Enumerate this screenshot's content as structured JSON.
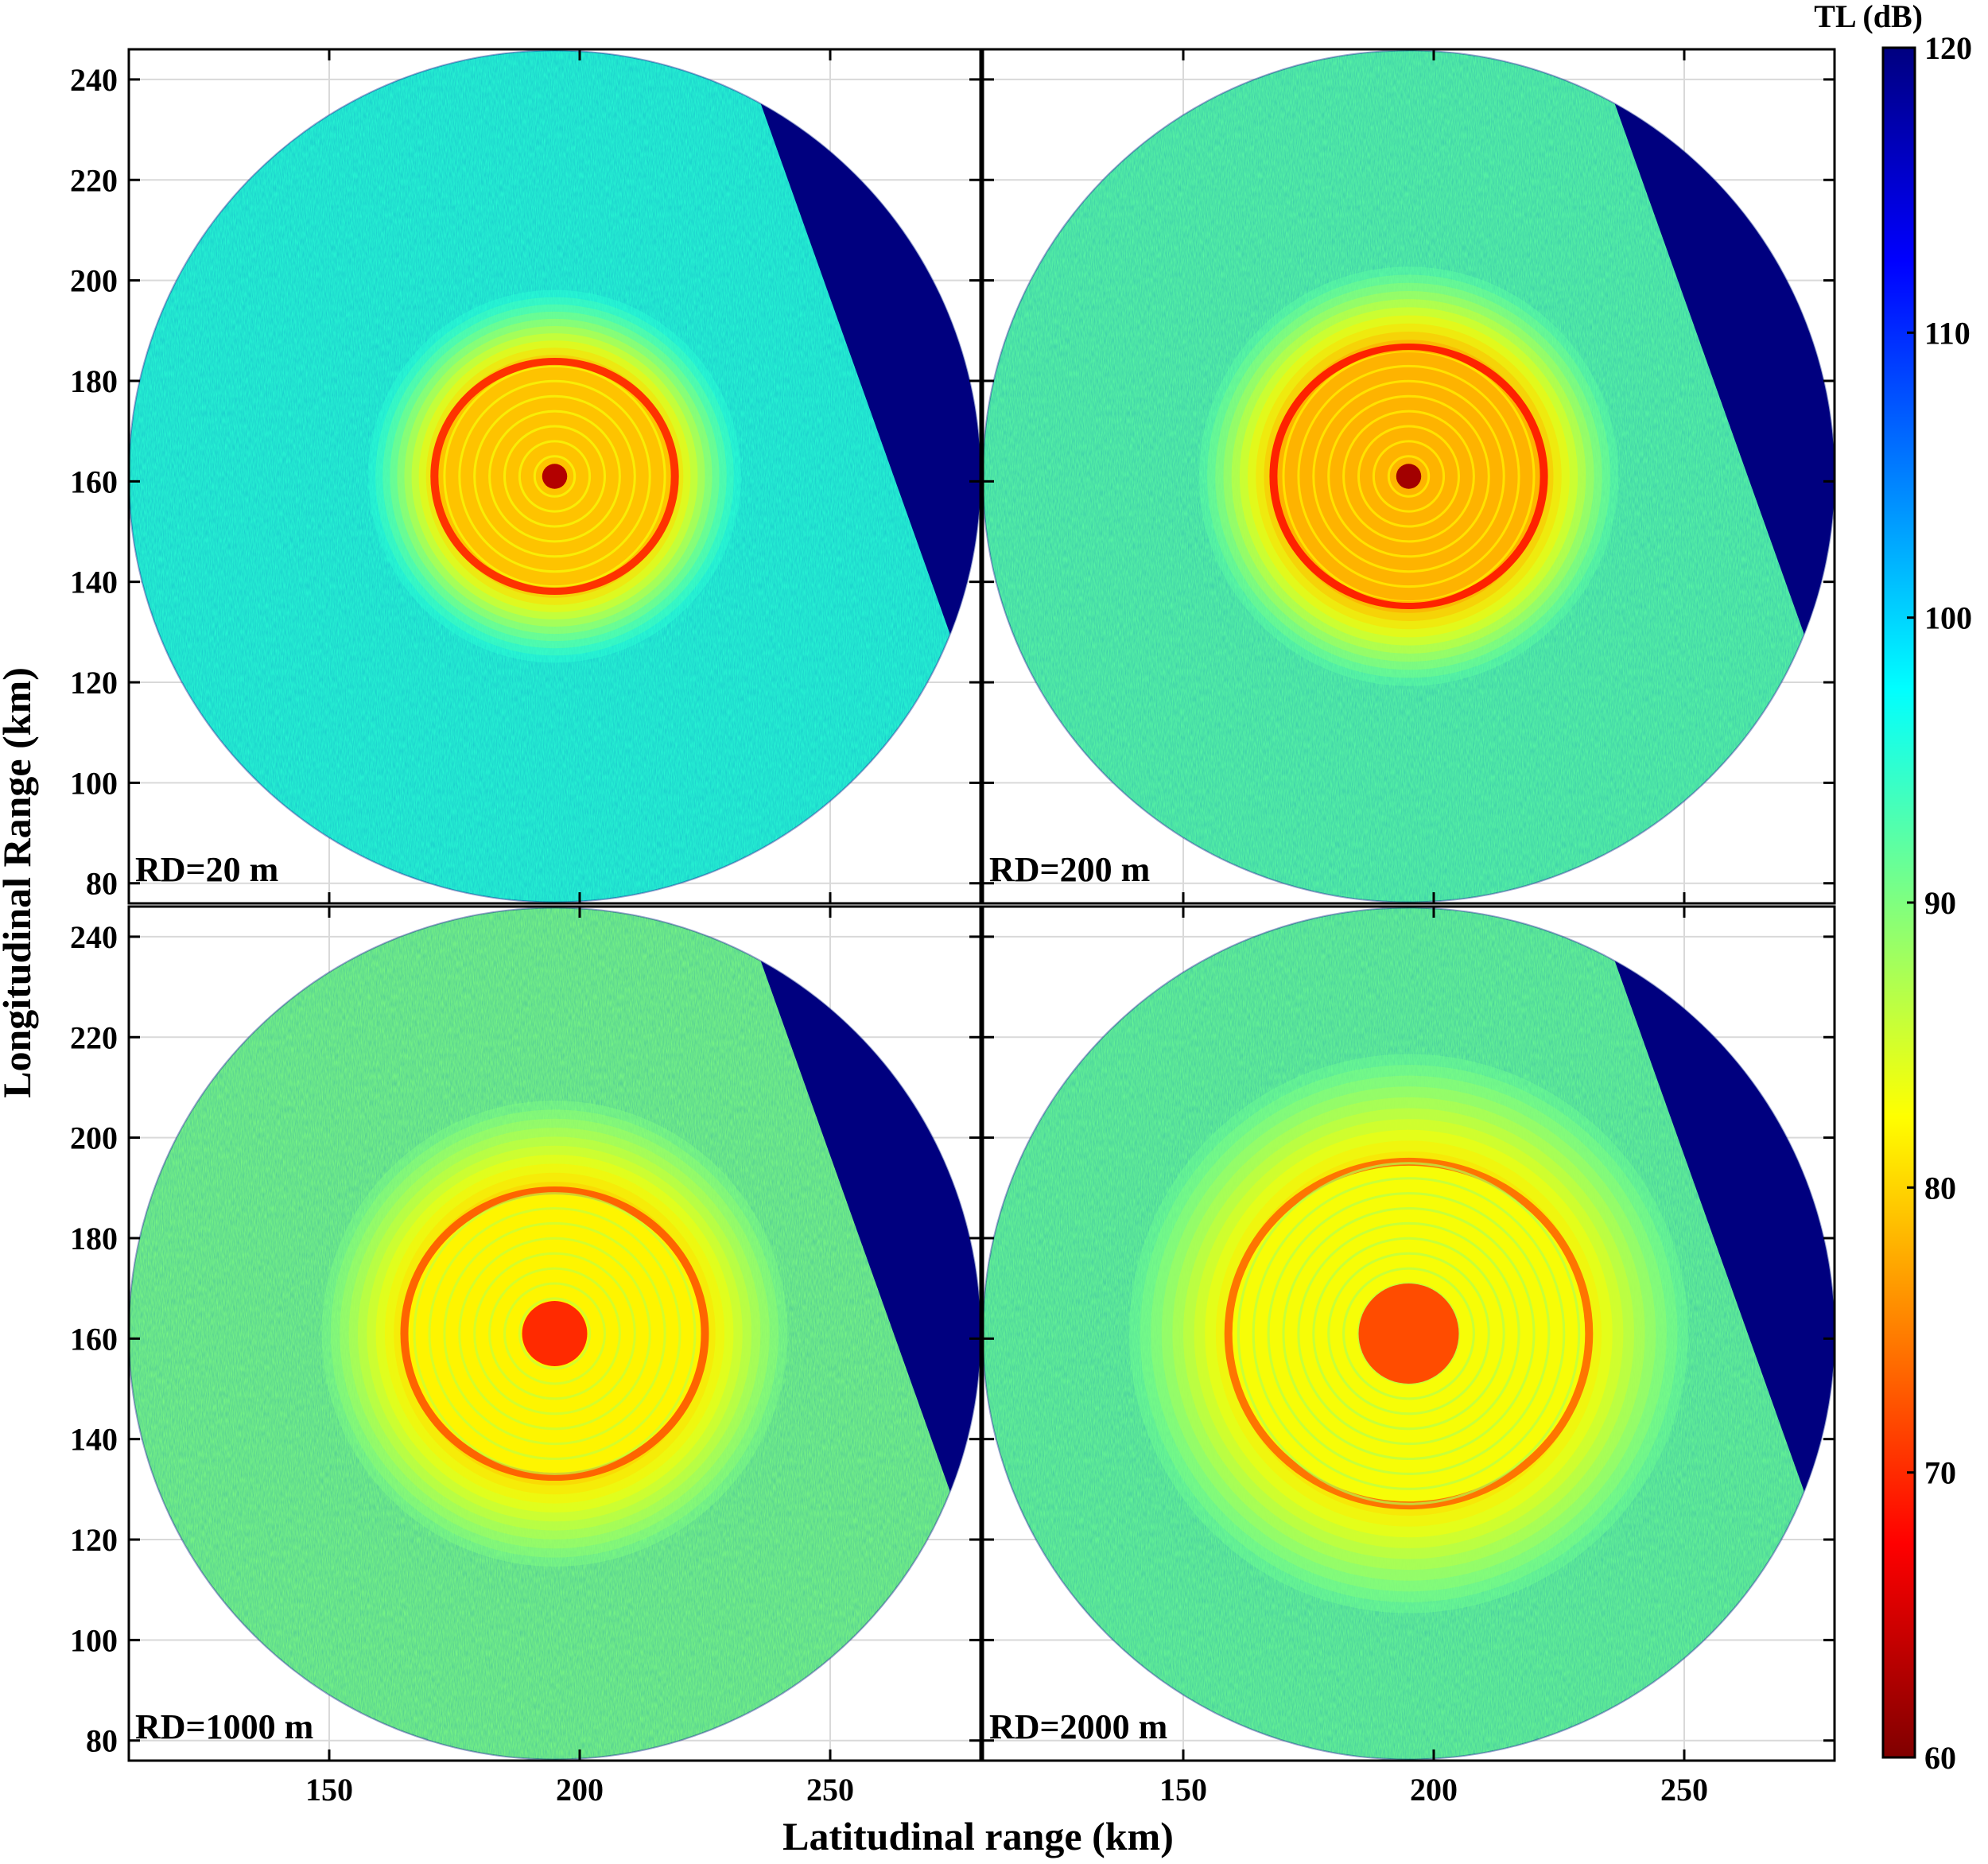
{
  "chart_data": {
    "type": "heatmap",
    "xlabel": "Latitudinal range (km)",
    "ylabel": "Longitudinal Range (km)",
    "xlim": [
      110,
      280
    ],
    "ylim": [
      76,
      246
    ],
    "xticks": [
      150,
      200,
      250
    ],
    "yticks": [
      80,
      100,
      120,
      140,
      160,
      180,
      200,
      220,
      240
    ],
    "grid": true,
    "colormap": "jet",
    "colorbar": {
      "title": "TL (dB)",
      "min": 60,
      "max": 120,
      "ticks": [
        60,
        70,
        80,
        90,
        100,
        110,
        120
      ]
    },
    "source_position": [
      195,
      161
    ],
    "domain_radius_km": 85,
    "panels": [
      {
        "label": "RD=20 m",
        "core_tl": 63,
        "ring_radius_km": 24,
        "ring_tl": 73,
        "mean_tl": 95,
        "blocked_sector": true
      },
      {
        "label": "RD=200 m",
        "core_tl": 62,
        "ring_radius_km": 27,
        "ring_tl": 72,
        "mean_tl": 92,
        "blocked_sector": true
      },
      {
        "label": "RD=1000 m",
        "core_tl": 70,
        "ring_radius_km": 30,
        "ring_tl": 76,
        "mean_tl": 90,
        "blocked_sector": true
      },
      {
        "label": "RD=2000 m",
        "core_tl": 72,
        "ring_radius_km": 36,
        "ring_tl": 77,
        "mean_tl": 91,
        "blocked_sector": true
      }
    ]
  }
}
